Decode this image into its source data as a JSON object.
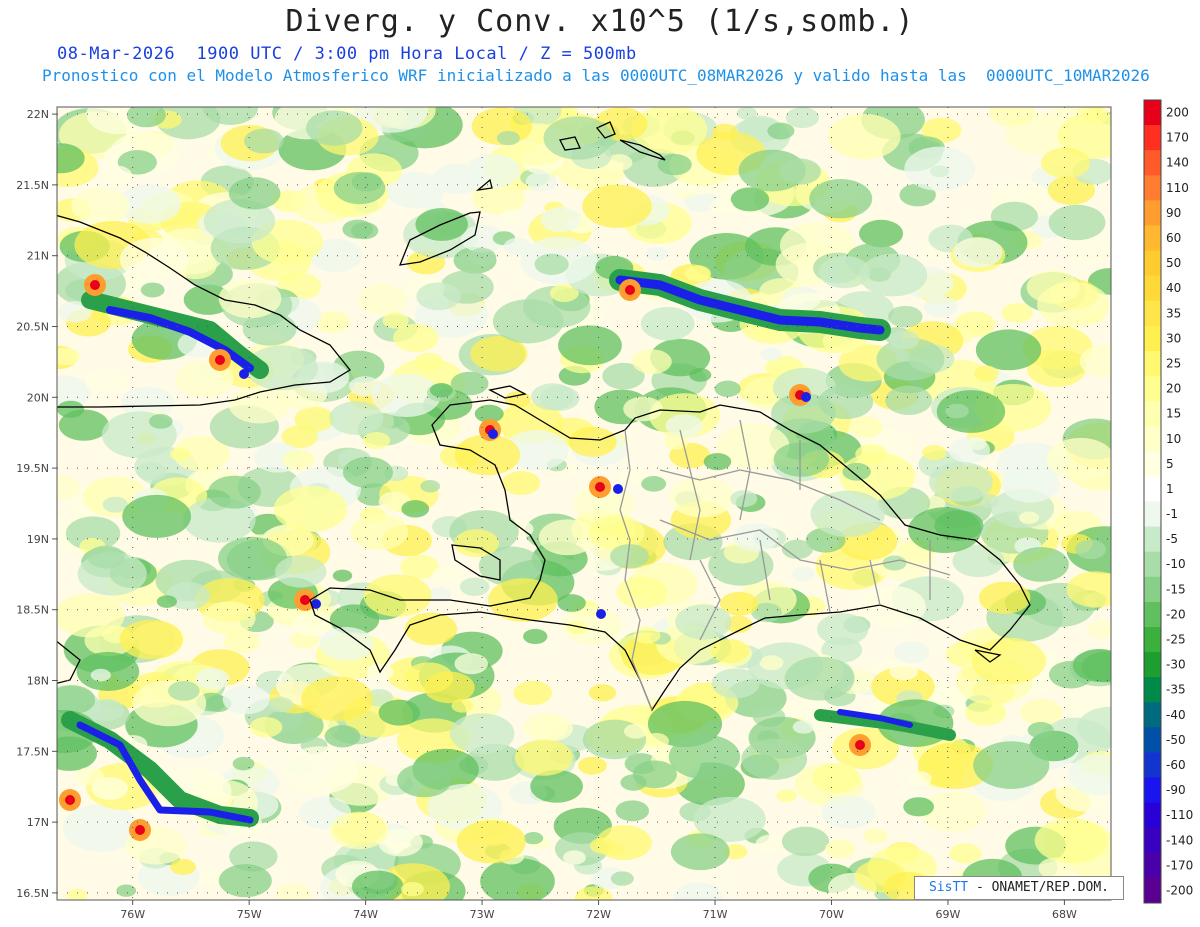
{
  "header": {
    "title": "Diverg. y Conv. x10^5 (1/s,somb.)",
    "line1": "08-Mar-2026  1900 UTC / 3:00 pm Hora Local / Z = 500mb",
    "line2": "Pronostico con el Modelo Atmosferico WRF inicializado a las 0000UTC_08MAR2026 y valido hasta las  0000UTC_10MAR2026"
  },
  "map": {
    "lat_labels": [
      "22N",
      "21.5N",
      "21N",
      "20.5N",
      "20N",
      "19.5N",
      "19N",
      "18.5N",
      "18N",
      "17.5N",
      "17N",
      "16.5N"
    ],
    "lon_labels": [
      "76W",
      "75W",
      "74W",
      "73W",
      "72W",
      "71W",
      "70W",
      "69W",
      "68W"
    ],
    "lon_range": [
      -76.65,
      -67.6
    ],
    "lat_range": [
      16.45,
      22.05
    ]
  },
  "colorbar": {
    "labels": [
      "200",
      "170",
      "140",
      "110",
      "90",
      "60",
      "50",
      "40",
      "35",
      "30",
      "25",
      "20",
      "15",
      "10",
      "5",
      "1",
      "-1",
      "-5",
      "-10",
      "-15",
      "-20",
      "-25",
      "-30",
      "-35",
      "-40",
      "-50",
      "-60",
      "-90",
      "-110",
      "-140",
      "-170",
      "-200"
    ],
    "colors": [
      "#e8001a",
      "#ff3020",
      "#ff5a28",
      "#ff7c30",
      "#ff9e30",
      "#ffb830",
      "#ffcc30",
      "#ffd93a",
      "#ffe54a",
      "#fff050",
      "#fff870",
      "#ffff90",
      "#ffffb0",
      "#ffffc8",
      "#ffffe2",
      "#ffffff",
      "#eef8ee",
      "#c8eac8",
      "#a8dca8",
      "#88d088",
      "#60c060",
      "#3cb03c",
      "#1e9e2e",
      "#008a4a",
      "#006a80",
      "#0050a8",
      "#1434d0",
      "#1a14f0",
      "#2a00d8",
      "#3a00c0",
      "#4a00a8",
      "#5a0090"
    ]
  },
  "credit": {
    "sis": "SisTT",
    "rest": " - ONAMET/REP.DOM."
  }
}
